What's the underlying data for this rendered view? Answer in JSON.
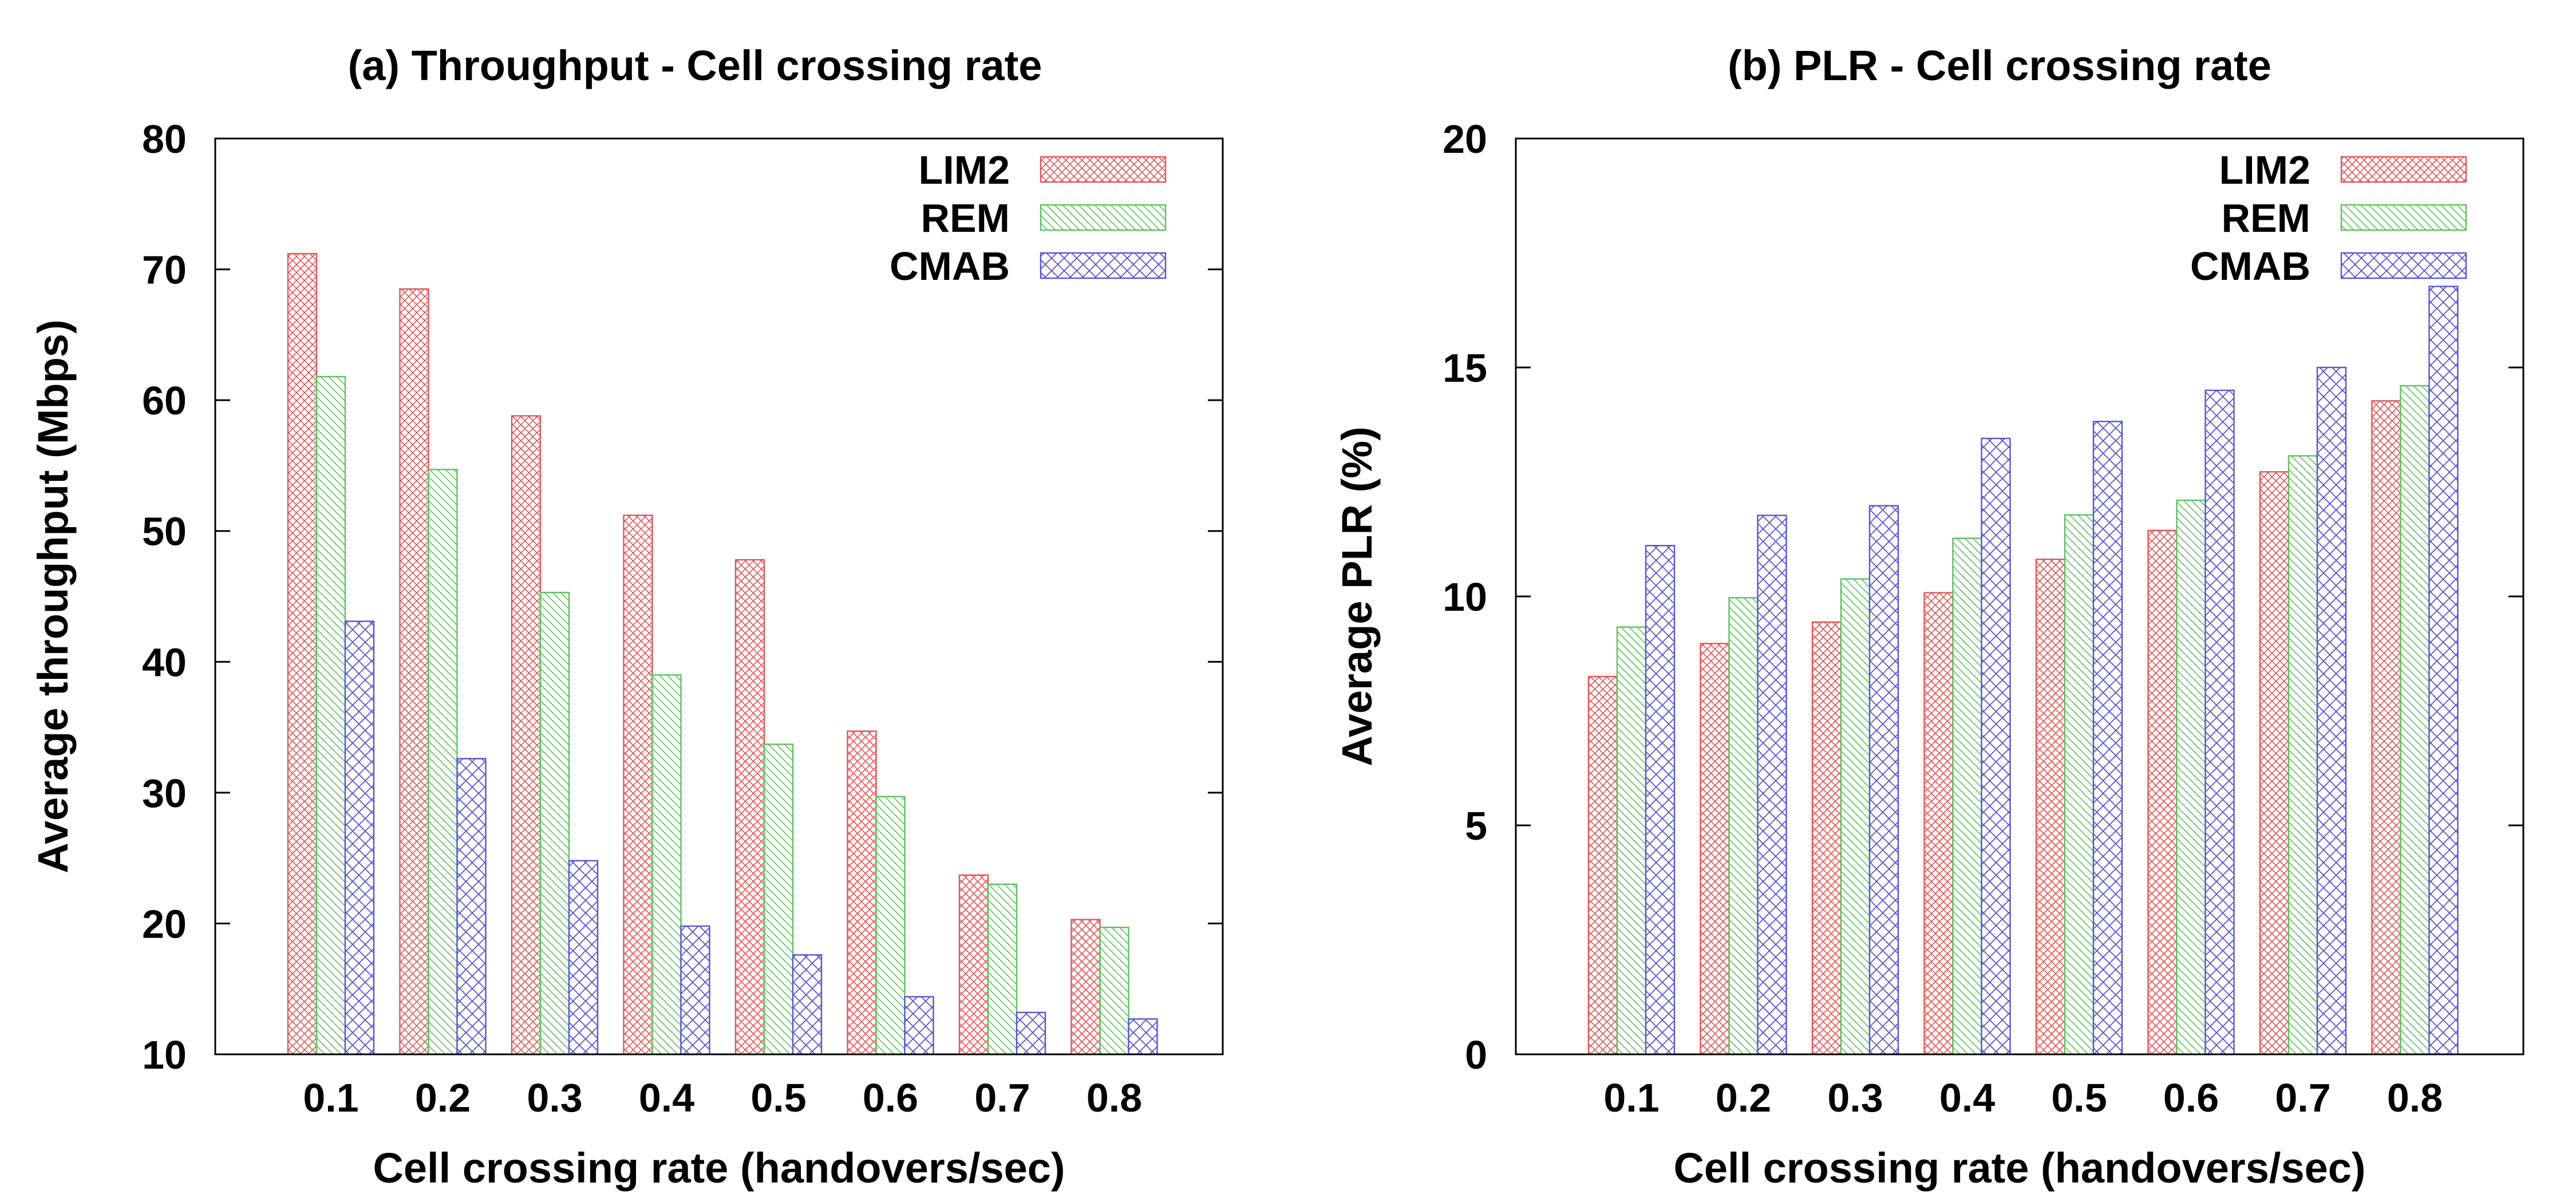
{
  "colors": {
    "LIM2": "#e05555",
    "REM": "#5cc15c",
    "CMAB": "#5555d5"
  },
  "chart_data": [
    {
      "type": "bar",
      "title": "(a) Throughput - Cell crossing rate",
      "xlabel": "Cell crossing rate (handovers/sec)",
      "ylabel": "Average throughput (Mbps)",
      "ylim": [
        10,
        80
      ],
      "yticks": [
        10,
        20,
        30,
        40,
        50,
        60,
        70,
        80
      ],
      "grid": false,
      "legend_position": "top-right",
      "categories": [
        "0.1",
        "0.2",
        "0.3",
        "0.4",
        "0.5",
        "0.6",
        "0.7",
        "0.8"
      ],
      "series": [
        {
          "name": "LIM2",
          "values": [
            71.2,
            68.5,
            58.8,
            51.2,
            47.8,
            34.7,
            23.7,
            20.3
          ]
        },
        {
          "name": "REM",
          "values": [
            61.8,
            54.7,
            45.3,
            39.0,
            33.7,
            29.7,
            23.0,
            19.7
          ]
        },
        {
          "name": "CMAB",
          "values": [
            43.1,
            32.6,
            24.8,
            19.8,
            17.6,
            14.4,
            13.2,
            12.7
          ]
        }
      ]
    },
    {
      "type": "bar",
      "title": "(b) PLR - Cell crossing rate",
      "xlabel": "Cell crossing rate (handovers/sec)",
      "ylabel": "Average PLR (%)",
      "ylim": [
        0,
        20
      ],
      "yticks": [
        0,
        5,
        10,
        15,
        20
      ],
      "grid": false,
      "legend_position": "top-right",
      "categories": [
        "0.1",
        "0.2",
        "0.3",
        "0.4",
        "0.5",
        "0.6",
        "0.7",
        "0.8"
      ],
      "series": [
        {
          "name": "LIM2",
          "values": [
            8.25,
            8.97,
            9.44,
            10.08,
            10.81,
            11.44,
            12.72,
            14.27
          ]
        },
        {
          "name": "REM",
          "values": [
            9.33,
            9.97,
            10.38,
            11.27,
            11.78,
            12.1,
            13.07,
            14.6
          ]
        },
        {
          "name": "CMAB",
          "values": [
            11.11,
            11.77,
            11.98,
            13.45,
            13.82,
            14.5,
            15.0,
            16.77
          ]
        }
      ]
    }
  ]
}
